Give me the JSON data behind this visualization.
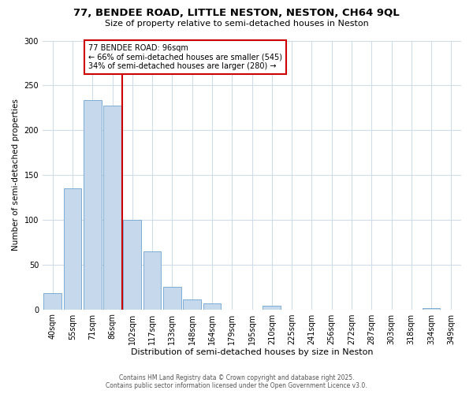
{
  "title_line1": "77, BENDEE ROAD, LITTLE NESTON, NESTON, CH64 9QL",
  "title_line2": "Size of property relative to semi-detached houses in Neston",
  "xlabel": "Distribution of semi-detached houses by size in Neston",
  "ylabel": "Number of semi-detached properties",
  "categories": [
    "40sqm",
    "55sqm",
    "71sqm",
    "86sqm",
    "102sqm",
    "117sqm",
    "133sqm",
    "148sqm",
    "164sqm",
    "179sqm",
    "195sqm",
    "210sqm",
    "225sqm",
    "241sqm",
    "256sqm",
    "272sqm",
    "287sqm",
    "303sqm",
    "318sqm",
    "334sqm",
    "349sqm"
  ],
  "bar_heights": [
    18,
    135,
    234,
    227,
    100,
    65,
    25,
    11,
    7,
    0,
    0,
    4,
    0,
    0,
    0,
    0,
    0,
    0,
    0,
    1,
    0
  ],
  "bar_color": "#c5d8ec",
  "bar_edge_color": "#7dadd4",
  "vline_position": 3.5,
  "vline_color": "#cc0000",
  "annotation_title": "77 BENDEE ROAD: 96sqm",
  "annotation_line2": "← 66% of semi-detached houses are smaller (545)",
  "annotation_line3": "34% of semi-detached houses are larger (280) →",
  "annotation_box_edgecolor": "#cc0000",
  "ylim": [
    0,
    300
  ],
  "yticks": [
    0,
    50,
    100,
    150,
    200,
    250,
    300
  ],
  "background_color": "#ffffff",
  "grid_color": "#d0dce8",
  "footer_line1": "Contains HM Land Registry data © Crown copyright and database right 2025.",
  "footer_line2": "Contains public sector information licensed under the Open Government Licence v3.0."
}
